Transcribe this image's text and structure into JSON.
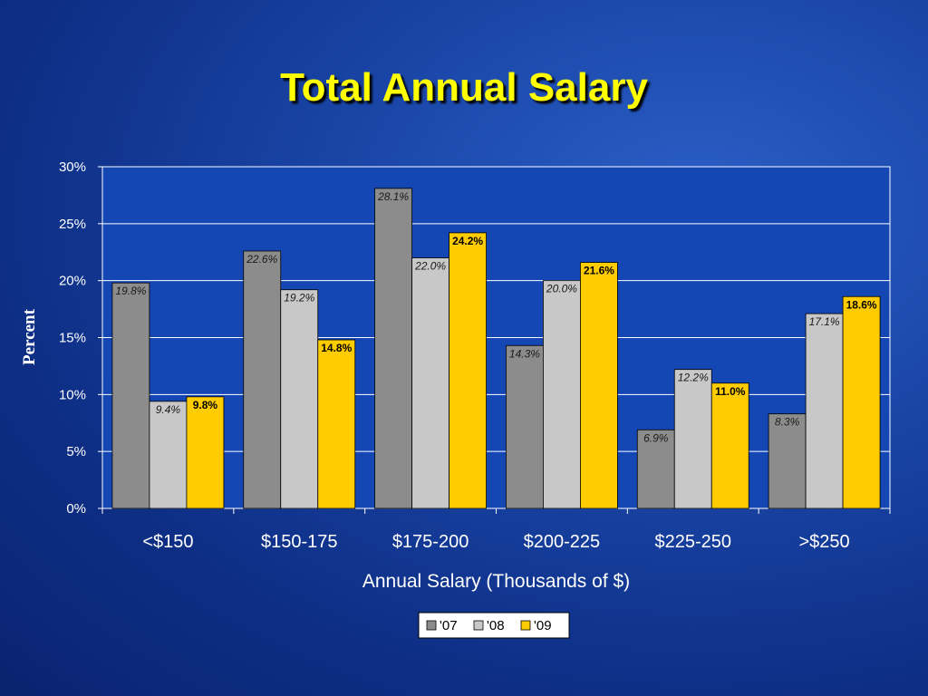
{
  "slide": {
    "title": "Total Annual Salary"
  },
  "colors": {
    "background": "#1a46a8",
    "title": "#ffff00",
    "series_07": "#8c8c8c",
    "series_08": "#c8c8c8",
    "series_09": "#ffcc00",
    "plot_area": "#1446b4",
    "gridlines": "#ffffff"
  },
  "chart_data": {
    "type": "bar",
    "title": "Total Annual Salary",
    "xlabel": "Annual Salary (Thousands of $)",
    "ylabel": "Percent",
    "ylim": [
      0,
      30
    ],
    "yticks": [
      "0%",
      "5%",
      "10%",
      "15%",
      "20%",
      "25%",
      "30%"
    ],
    "grid": true,
    "legend_position": "bottom",
    "categories": [
      "<$150",
      "$150-175",
      "$175-200",
      "$200-225",
      "$225-250",
      ">$250"
    ],
    "series": [
      {
        "name": "'07",
        "values": [
          19.8,
          22.6,
          28.1,
          14.3,
          6.9,
          8.3
        ],
        "labels": [
          "19.8%",
          "22.6%",
          "28.1%",
          "14.3%",
          "6.9%",
          "8.3%"
        ]
      },
      {
        "name": "'08",
        "values": [
          9.4,
          19.2,
          22.0,
          20.0,
          12.2,
          17.1
        ],
        "labels": [
          "9.4%",
          "19.2%",
          "22.0%",
          "20.0%",
          "12.2%",
          "17.1%"
        ]
      },
      {
        "name": "'09",
        "values": [
          9.8,
          14.8,
          24.2,
          21.6,
          11.0,
          18.6
        ],
        "labels": [
          "9.8%",
          "14.8%",
          "24.2%",
          "21.6%",
          "11.0%",
          "18.6%"
        ]
      }
    ]
  }
}
